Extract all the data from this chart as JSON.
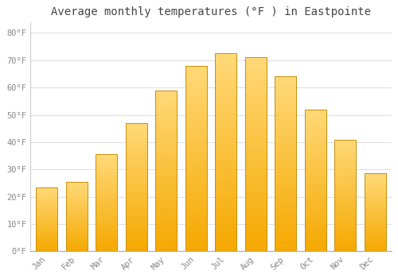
{
  "title": "Average monthly temperatures (°F ) in Eastpointe",
  "months": [
    "Jan",
    "Feb",
    "Mar",
    "Apr",
    "May",
    "Jun",
    "Jul",
    "Aug",
    "Sep",
    "Oct",
    "Nov",
    "Dec"
  ],
  "values": [
    23.5,
    25.5,
    35.5,
    47.0,
    59.0,
    68.0,
    72.5,
    71.0,
    64.0,
    52.0,
    41.0,
    28.5
  ],
  "bar_color_bottom": "#F5A800",
  "bar_color_top": "#FFD878",
  "bar_edge_color": "#C8900A",
  "background_color": "#ffffff",
  "grid_color": "#e0e0e0",
  "ytick_labels": [
    "0°F",
    "10°F",
    "20°F",
    "30°F",
    "40°F",
    "50°F",
    "60°F",
    "70°F",
    "80°F"
  ],
  "ytick_values": [
    0,
    10,
    20,
    30,
    40,
    50,
    60,
    70,
    80
  ],
  "ylim": [
    0,
    84
  ],
  "title_fontsize": 10,
  "tick_fontsize": 7.5,
  "tick_color": "#888888",
  "title_color": "#444444",
  "font_family": "monospace",
  "bar_width": 0.72
}
